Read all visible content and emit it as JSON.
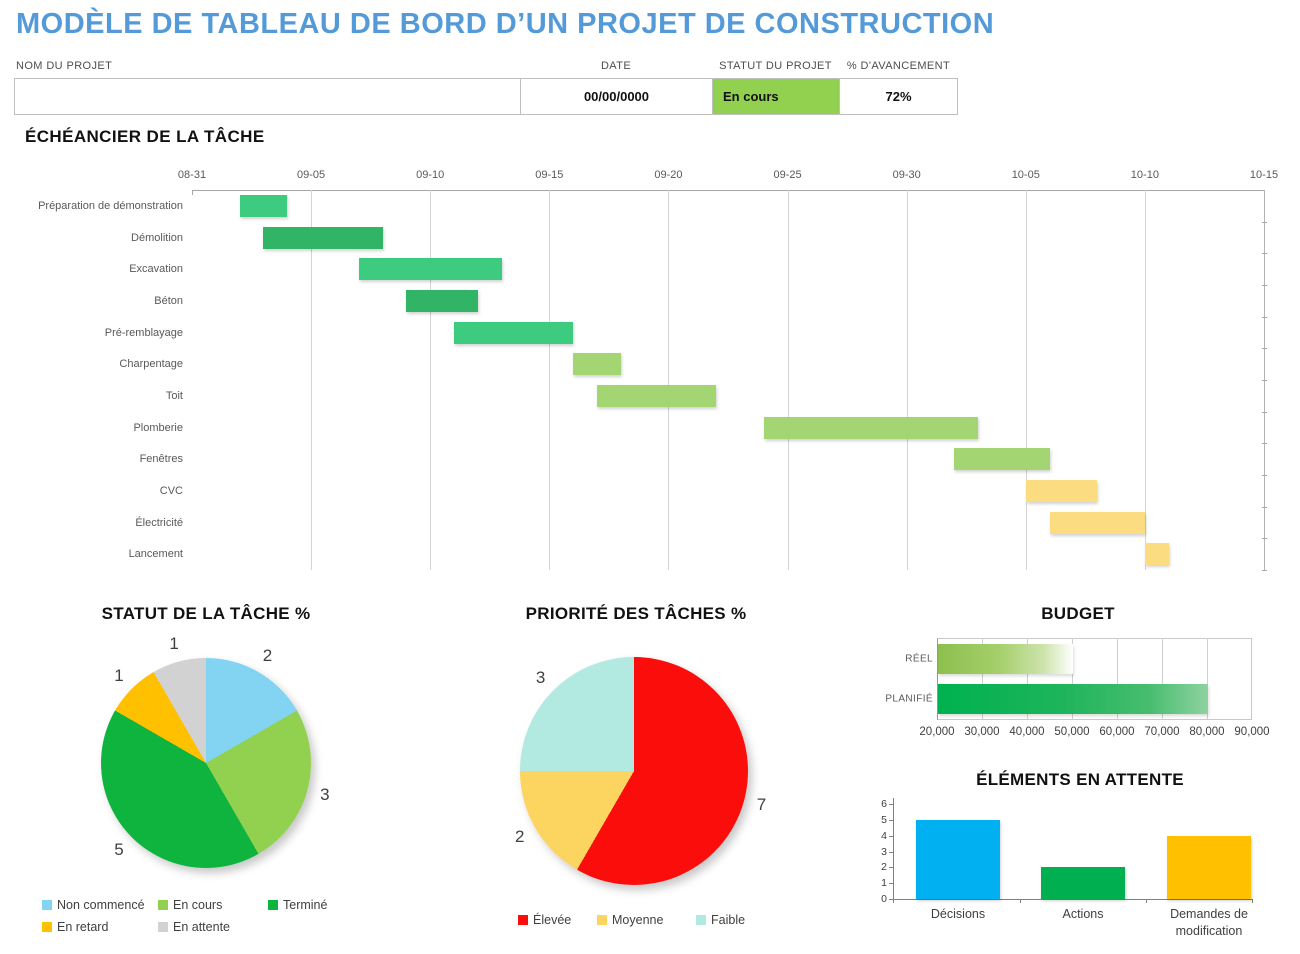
{
  "page": {
    "title": "MODÈLE DE TABLEAU DE BORD D’UN PROJET DE CONSTRUCTION",
    "title_color": "#559ad8"
  },
  "header": {
    "project_name_label": "NOM DU PROJET",
    "project_name_value": "",
    "date_label": "DATE",
    "date_value": "00/00/0000",
    "status_label": "STATUT DU PROJET",
    "status_value": "En cours",
    "status_bg": "#92d050",
    "progress_label": "% D'AVANCEMENT",
    "progress_value": "72%"
  },
  "chart_data": [
    {
      "id": "gantt-echeancier",
      "type": "bar",
      "subtype": "gantt",
      "title": "ÉCHÉANCIER DE LA TÂCHE",
      "x_tick_labels": [
        "08-31",
        "09-05",
        "09-10",
        "09-15",
        "09-20",
        "09-25",
        "09-30",
        "10-05",
        "10-10",
        "10-15"
      ],
      "days_per_tick": 5,
      "x_range_days": [
        0,
        45
      ],
      "bar_colors": {
        "emerald": "#3ccb7f",
        "green_dark": "#31b466",
        "green_light": "#a3d672",
        "yellow": "#fbdc80"
      },
      "tasks": [
        {
          "name": "Préparation de démonstration",
          "start": "09-02",
          "end": "09-04",
          "start_day": 2,
          "duration_days": 2,
          "color_key": "emerald"
        },
        {
          "name": "Démolition",
          "start": "09-03",
          "end": "09-08",
          "start_day": 3,
          "duration_days": 5,
          "color_key": "green_dark"
        },
        {
          "name": "Excavation",
          "start": "09-07",
          "end": "09-13",
          "start_day": 7,
          "duration_days": 6,
          "color_key": "emerald"
        },
        {
          "name": "Béton",
          "start": "09-09",
          "end": "09-12",
          "start_day": 9,
          "duration_days": 3,
          "color_key": "green_dark"
        },
        {
          "name": "Pré-remblayage",
          "start": "09-11",
          "end": "09-16",
          "start_day": 11,
          "duration_days": 5,
          "color_key": "emerald"
        },
        {
          "name": "Charpentage",
          "start": "09-16",
          "end": "09-18",
          "start_day": 16,
          "duration_days": 2,
          "color_key": "green_light"
        },
        {
          "name": "Toit",
          "start": "09-17",
          "end": "09-22",
          "start_day": 17,
          "duration_days": 5,
          "color_key": "green_light"
        },
        {
          "name": "Plomberie",
          "start": "09-24",
          "end": "10-03",
          "start_day": 24,
          "duration_days": 9,
          "color_key": "green_light"
        },
        {
          "name": "Fenêtres",
          "start": "10-02",
          "end": "10-06",
          "start_day": 32,
          "duration_days": 4,
          "color_key": "green_light"
        },
        {
          "name": "CVC",
          "start": "10-05",
          "end": "10-08",
          "start_day": 35,
          "duration_days": 3,
          "color_key": "yellow"
        },
        {
          "name": "Électricité",
          "start": "10-06",
          "end": "10-10",
          "start_day": 36,
          "duration_days": 4,
          "color_key": "yellow"
        },
        {
          "name": "Lancement",
          "start": "10-10",
          "end": "10-11",
          "start_day": 40,
          "duration_days": 1,
          "color_key": "yellow"
        }
      ]
    },
    {
      "id": "statut-tache",
      "type": "pie",
      "title": "STATUT DE LA TÂCHE %",
      "labels": [
        "Non commencé",
        "En cours",
        "Terminé",
        "En retard",
        "En attente"
      ],
      "values": [
        2,
        3,
        5,
        1,
        1
      ],
      "colors": [
        "#82d4f2",
        "#92d050",
        "#0fb43f",
        "#ffc000",
        "#d2d2d2"
      ],
      "start_angle_deg": 0,
      "legend_position": "bottom"
    },
    {
      "id": "priorite-taches",
      "type": "pie",
      "title": "PRIORITÉ DES TÂCHES %",
      "labels": [
        "Élevée",
        "Moyenne",
        "Faible"
      ],
      "values": [
        7,
        2,
        3
      ],
      "colors": [
        "#fb0d0c",
        "#fbd560",
        "#b2e9e0"
      ],
      "start_angle_deg": 0,
      "legend_position": "bottom"
    },
    {
      "id": "budget",
      "type": "bar",
      "orientation": "horizontal",
      "title": "BUDGET",
      "categories": [
        "RÉEL",
        "PLANIFIÉ"
      ],
      "values": [
        50000,
        80000
      ],
      "xlim": [
        20000,
        90000
      ],
      "x_tick_labels": [
        "20,000",
        "30,000",
        "40,000",
        "50,000",
        "60,000",
        "70,000",
        "80,000",
        "90,000"
      ],
      "bar_gradients": [
        [
          "#8dbf4e",
          "#a5cf6b",
          "#cde3ab",
          "#ffffff"
        ],
        [
          "#00b14f",
          "#1db45b",
          "#47bd6e",
          "#8ed2a0"
        ]
      ],
      "grid": true
    },
    {
      "id": "elements-attente",
      "type": "bar",
      "orientation": "vertical",
      "title": "ÉLÉMENTS EN ATTENTE",
      "categories": [
        "Décisions",
        "Actions",
        "Demandes de modification"
      ],
      "values": [
        5,
        2,
        4
      ],
      "ylim": [
        0,
        6
      ],
      "y_tick_labels": [
        "0",
        "1",
        "2",
        "3",
        "4",
        "5",
        "6"
      ],
      "colors": [
        "#00b0f0",
        "#00b050",
        "#ffc000"
      ],
      "grid": false
    }
  ]
}
